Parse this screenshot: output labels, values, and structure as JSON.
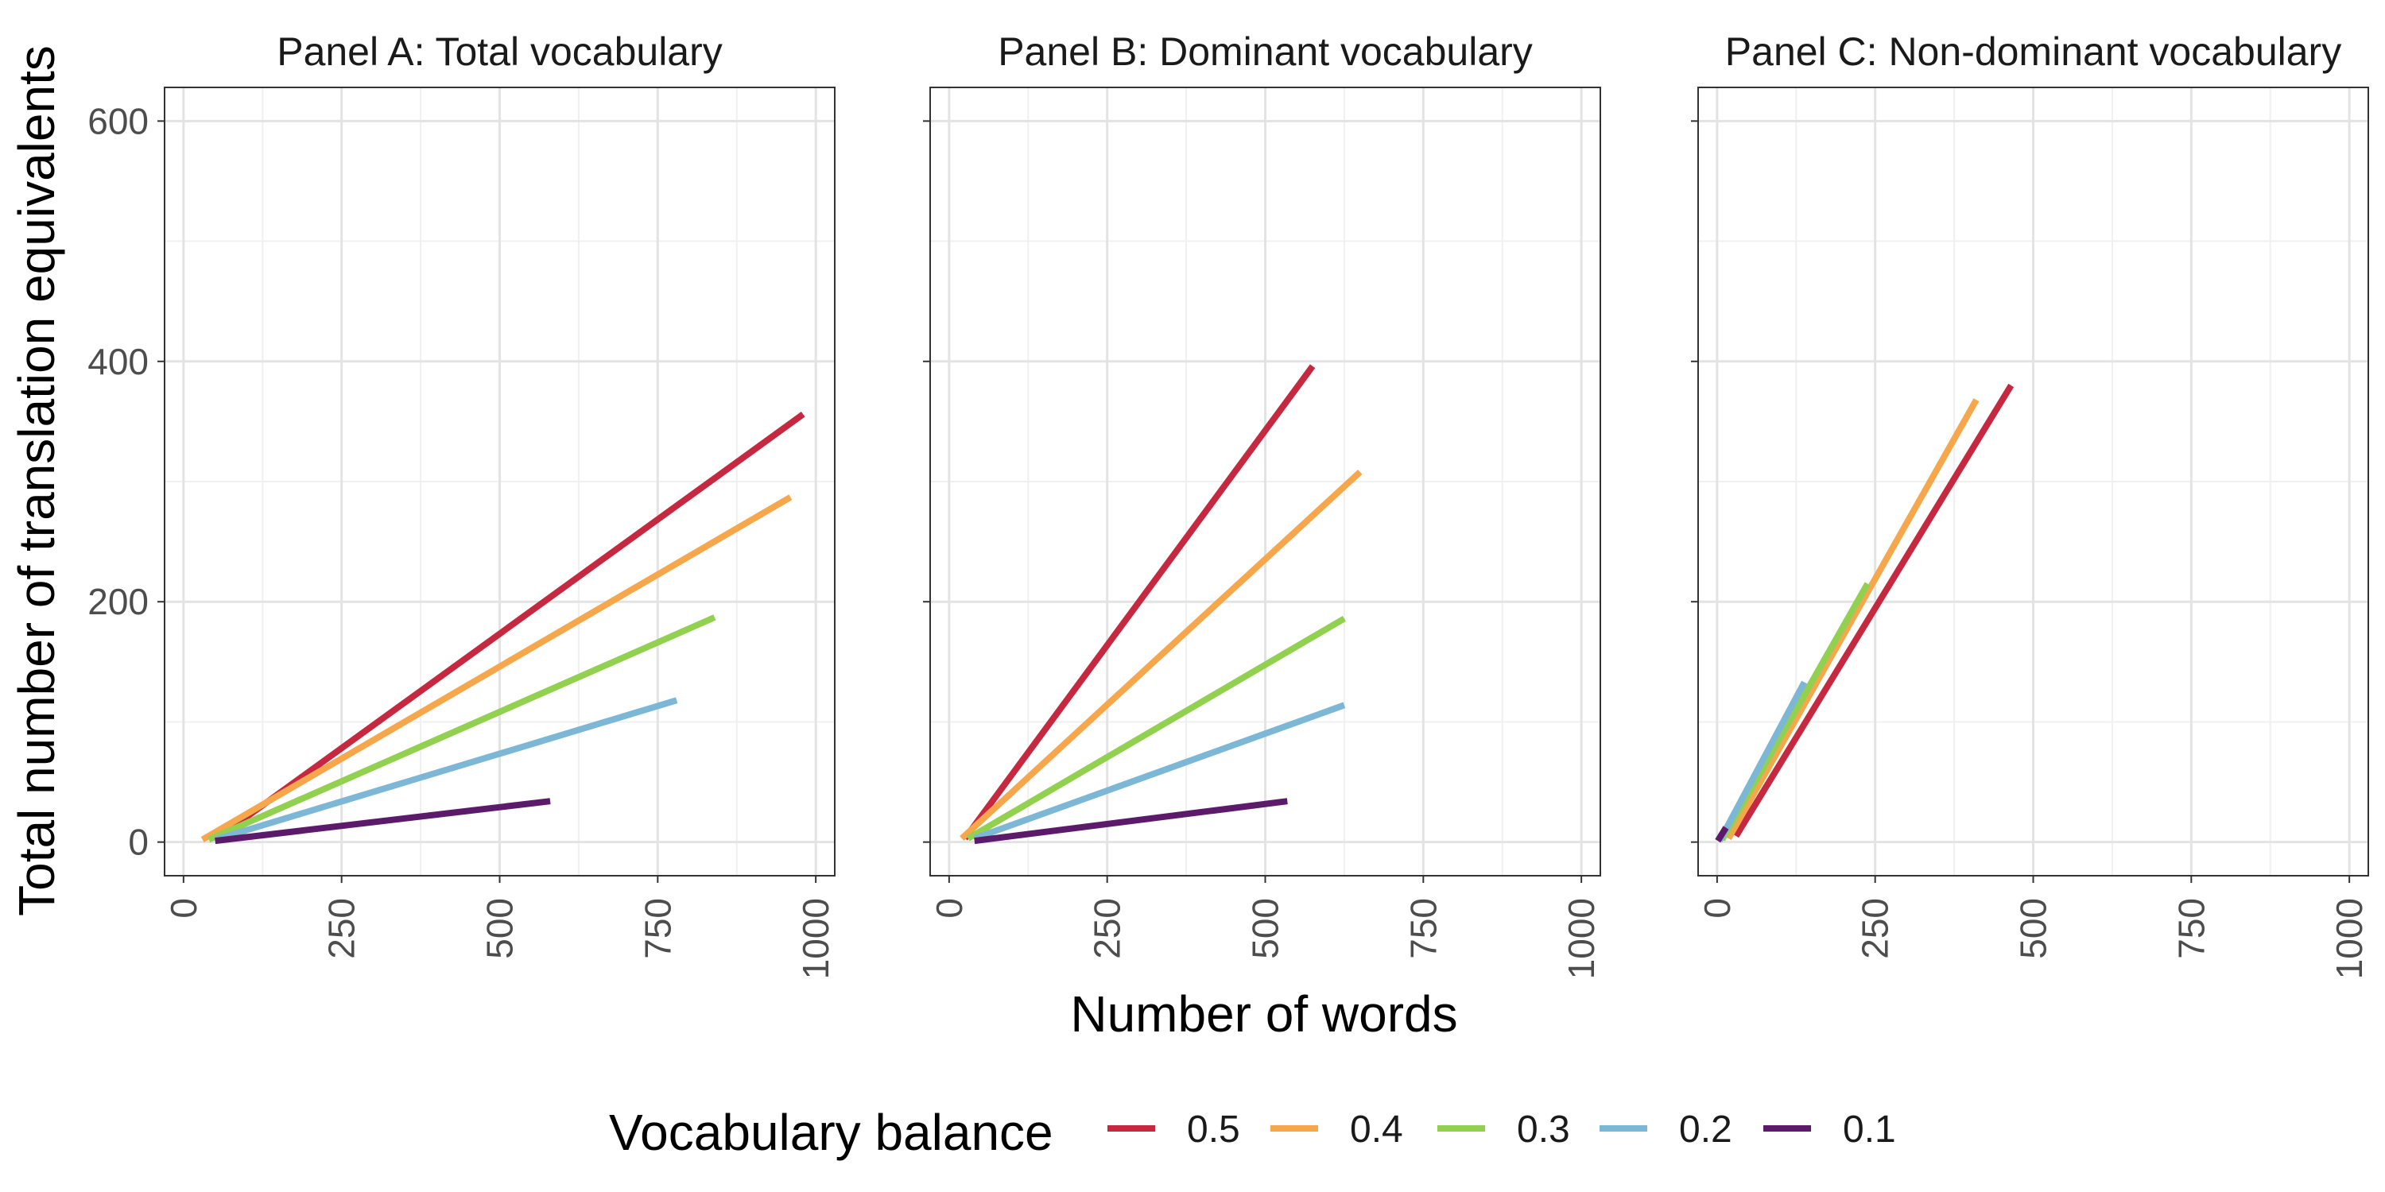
{
  "chart_data": {
    "type": "line",
    "xlabel": "Number of words",
    "ylabel": "Total number of translation equivalents",
    "xlim": [
      -30,
      1030
    ],
    "ylim": [
      -28,
      628
    ],
    "x_ticks": [
      0,
      250,
      500,
      750,
      1000
    ],
    "x_tick_labels": [
      "0",
      "250",
      "500",
      "750",
      "1000"
    ],
    "y_ticks": [
      0,
      200,
      400,
      600
    ],
    "y_tick_labels": [
      "0",
      "200",
      "400",
      "600"
    ],
    "grid": true,
    "legend": {
      "title": "Vocabulary balance",
      "position": "bottom",
      "entries": [
        {
          "label": "0.5",
          "color": "#C62840"
        },
        {
          "label": "0.4",
          "color": "#F6A74C"
        },
        {
          "label": "0.3",
          "color": "#92D050"
        },
        {
          "label": "0.2",
          "color": "#7DB7D6"
        },
        {
          "label": "0.1",
          "color": "#5C1A6B"
        }
      ]
    },
    "panels": [
      {
        "title": "Panel A: Total vocabulary",
        "series": [
          {
            "name": "0.5",
            "color": "#C62840",
            "x": [
              50,
              980
            ],
            "y": [
              2,
              356
            ]
          },
          {
            "name": "0.4",
            "color": "#F6A74C",
            "x": [
              30,
              960
            ],
            "y": [
              2,
              287
            ]
          },
          {
            "name": "0.3",
            "color": "#92D050",
            "x": [
              40,
              840
            ],
            "y": [
              2,
              187
            ]
          },
          {
            "name": "0.2",
            "color": "#7DB7D6",
            "x": [
              50,
              780
            ],
            "y": [
              2,
              118
            ]
          },
          {
            "name": "0.1",
            "color": "#5C1A6B",
            "x": [
              50,
              580
            ],
            "y": [
              1,
              34
            ]
          }
        ]
      },
      {
        "title": "Panel B: Dominant vocabulary",
        "series": [
          {
            "name": "0.5",
            "color": "#C62840",
            "x": [
              25,
              575
            ],
            "y": [
              3,
              396
            ]
          },
          {
            "name": "0.4",
            "color": "#F6A74C",
            "x": [
              20,
              650
            ],
            "y": [
              3,
              308
            ]
          },
          {
            "name": "0.3",
            "color": "#92D050",
            "x": [
              30,
              625
            ],
            "y": [
              3,
              186
            ]
          },
          {
            "name": "0.2",
            "color": "#7DB7D6",
            "x": [
              40,
              625
            ],
            "y": [
              3,
              114
            ]
          },
          {
            "name": "0.1",
            "color": "#5C1A6B",
            "x": [
              40,
              535
            ],
            "y": [
              1,
              34
            ]
          }
        ]
      },
      {
        "title": "Panel C: Non-dominant vocabulary",
        "series": [
          {
            "name": "0.5",
            "color": "#C62840",
            "x": [
              30,
              465
            ],
            "y": [
              5,
              380
            ]
          },
          {
            "name": "0.4",
            "color": "#F6A74C",
            "x": [
              18,
              410
            ],
            "y": [
              3,
              368
            ]
          },
          {
            "name": "0.3",
            "color": "#92D050",
            "x": [
              8,
              238
            ],
            "y": [
              2,
              215
            ]
          },
          {
            "name": "0.2",
            "color": "#7DB7D6",
            "x": [
              4,
              138
            ],
            "y": [
              1,
              133
            ]
          },
          {
            "name": "0.1",
            "color": "#5C1A6B",
            "x": [
              1,
              14
            ],
            "y": [
              1,
              12
            ]
          }
        ]
      }
    ]
  }
}
